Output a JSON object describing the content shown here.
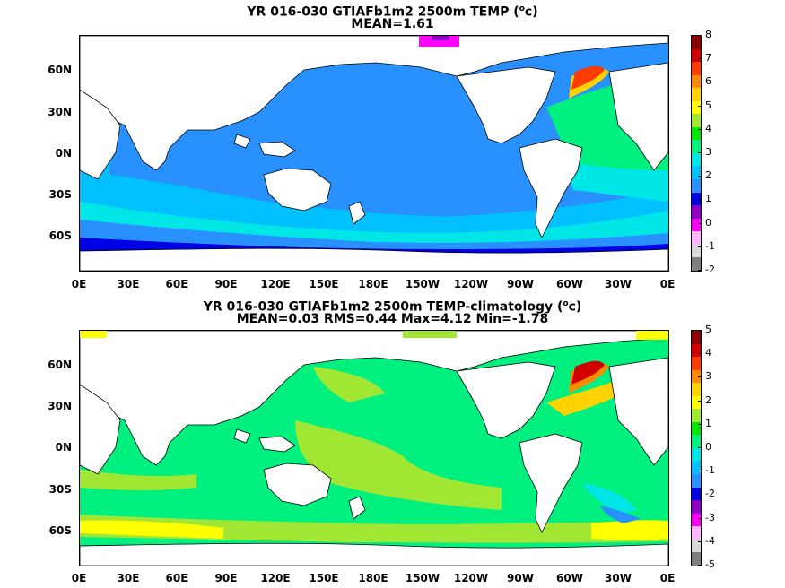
{
  "top": {
    "title": "YR 016-030 GTIAFb1m2 2500m TEMP (",
    "title_sup": "o",
    "title_unit": "c)",
    "subtitle": "MEAN=1.61",
    "colorbar_labels": [
      "8",
      "7",
      "6",
      "5",
      "4",
      "3",
      "2",
      "1",
      "0",
      "-1",
      "-2"
    ],
    "colorbar_colors": [
      "#8b0000",
      "#d20000",
      "#ff3c00",
      "#ff8c00",
      "#ffd200",
      "#ffff00",
      "#a0e632",
      "#00e600",
      "#00f080",
      "#00e6e6",
      "#00c0ff",
      "#2890ff",
      "#0000e6",
      "#8c00c8",
      "#ff00ff",
      "#ffb4ff",
      "#d8d8d8",
      "#808080"
    ]
  },
  "bottom": {
    "title": "YR 016-030 GTIAFb1m2 2500m TEMP-climatology (",
    "title_sup": "o",
    "title_unit": "c)",
    "subtitle": "MEAN=0.03   RMS=0.44   Max=4.12   Min=-1.78",
    "colorbar_labels": [
      "5",
      "4",
      "3",
      "2",
      "1",
      "0",
      "-1",
      "-2",
      "-3",
      "-4",
      "-5"
    ],
    "colorbar_colors": [
      "#8b0000",
      "#d20000",
      "#ff3c00",
      "#ff8c00",
      "#ffd200",
      "#ffff00",
      "#a0e632",
      "#00e600",
      "#00f080",
      "#00e6e6",
      "#00c0ff",
      "#2890ff",
      "#0000e6",
      "#8c00c8",
      "#ff00ff",
      "#ffb4ff",
      "#d8d8d8",
      "#808080"
    ]
  },
  "axes": {
    "lat_labels": [
      "60N",
      "30N",
      "0N",
      "30S",
      "60S"
    ],
    "lon_labels": [
      "0E",
      "30E",
      "60E",
      "90E",
      "120E",
      "150E",
      "180E",
      "150W",
      "120W",
      "90W",
      "60W",
      "30W",
      "0E"
    ]
  }
}
